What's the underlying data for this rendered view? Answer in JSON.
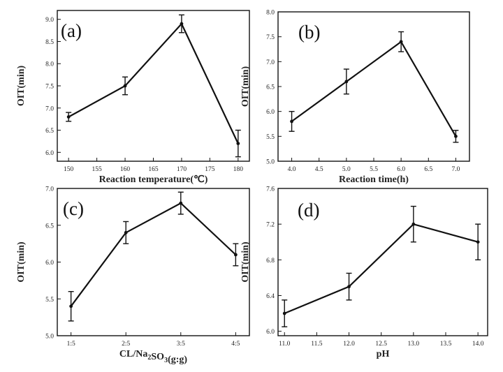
{
  "chart_data": [
    {
      "type": "line",
      "panel_label": "(a)",
      "xlabel": "Reaction temperature(℃)",
      "ylabel": "OIT(min)",
      "x": [
        150,
        160,
        170,
        180
      ],
      "y": [
        6.8,
        7.5,
        8.9,
        6.2
      ],
      "error": [
        0.1,
        0.2,
        0.2,
        0.3
      ],
      "xlim": [
        148,
        182
      ],
      "ylim": [
        5.8,
        9.2
      ],
      "xticks": [
        150,
        155,
        160,
        165,
        170,
        175,
        180
      ],
      "xtick_labels": [
        "150",
        "155",
        "160",
        "165",
        "170",
        "175",
        "180"
      ],
      "yticks": [
        6.0,
        6.5,
        7.0,
        7.5,
        8.0,
        8.5,
        9.0
      ],
      "ytick_labels": [
        "6.0",
        "6.5",
        "7.0",
        "7.5",
        "8.0",
        "8.5",
        "9.0"
      ]
    },
    {
      "type": "line",
      "panel_label": "(b)",
      "xlabel": "Reaction time(h)",
      "ylabel": "OIT(min)",
      "x": [
        4.0,
        5.0,
        6.0,
        7.0
      ],
      "y": [
        5.8,
        6.6,
        7.4,
        5.5
      ],
      "error": [
        0.2,
        0.25,
        0.2,
        0.12
      ],
      "xlim": [
        3.75,
        7.25
      ],
      "ylim": [
        5.0,
        8.0
      ],
      "xticks": [
        4.0,
        4.5,
        5.0,
        5.5,
        6.0,
        6.5,
        7.0
      ],
      "xtick_labels": [
        "4.0",
        "4.5",
        "5.0",
        "5.5",
        "6.0",
        "6.5",
        "7.0"
      ],
      "yticks": [
        5.0,
        5.5,
        6.0,
        6.5,
        7.0,
        7.5,
        8.0
      ],
      "ytick_labels": [
        "5.0",
        "5.5",
        "6.0",
        "6.5",
        "7.0",
        "7.5",
        "8.0"
      ]
    },
    {
      "type": "line",
      "panel_label": "(c)",
      "xlabel": "CL/Na2SO3(g:g)",
      "xlabel_parts": [
        {
          "text": "CL/Na",
          "sub": false
        },
        {
          "text": "2",
          "sub": true
        },
        {
          "text": "SO",
          "sub": false
        },
        {
          "text": "3",
          "sub": true
        },
        {
          "text": "(g:g)",
          "sub": false
        }
      ],
      "ylabel": "OIT(min)",
      "categories": [
        "1:5",
        "2:5",
        "3:5",
        "4:5"
      ],
      "y": [
        5.4,
        6.4,
        6.8,
        6.1
      ],
      "error": [
        0.2,
        0.15,
        0.15,
        0.15
      ],
      "xlim": [
        0.75,
        4.25
      ],
      "ylim": [
        5.0,
        7.0
      ],
      "yticks": [
        5.0,
        5.5,
        6.0,
        6.5,
        7.0
      ],
      "ytick_labels": [
        "5.0",
        "5.5",
        "6.0",
        "6.5",
        "7.0"
      ]
    },
    {
      "type": "line",
      "panel_label": "(d)",
      "xlabel": "pH",
      "ylabel": "OIT(min)",
      "x": [
        11.0,
        12.0,
        13.0,
        14.0
      ],
      "y": [
        6.2,
        6.5,
        7.2,
        7.0
      ],
      "error": [
        0.15,
        0.15,
        0.2,
        0.2
      ],
      "xlim": [
        10.9,
        14.15
      ],
      "ylim": [
        5.95,
        7.6
      ],
      "xticks": [
        11.0,
        11.5,
        12.0,
        12.5,
        13.0,
        13.5,
        14.0
      ],
      "xtick_labels": [
        "11.0",
        "11.5",
        "12.0",
        "12.5",
        "13.0",
        "13.5",
        "14.0"
      ],
      "yticks": [
        6.0,
        6.4,
        6.8,
        7.2,
        7.6
      ],
      "ytick_labels": [
        "6.0",
        "6.4",
        "6.8",
        "7.2",
        "7.6"
      ]
    }
  ]
}
